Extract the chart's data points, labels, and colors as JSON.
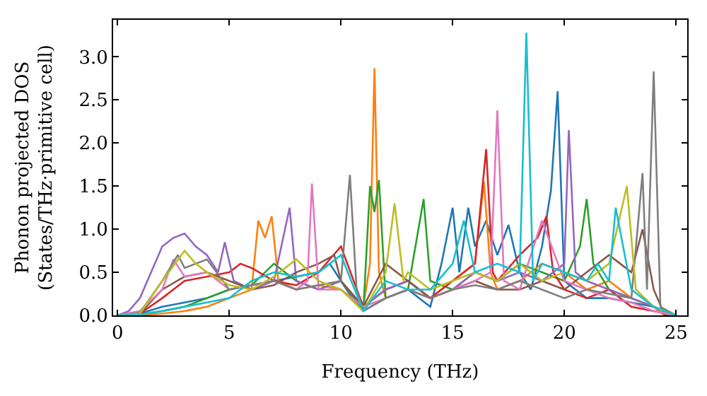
{
  "chart_data": {
    "type": "line",
    "xlabel": "Frequency (THz)",
    "ylabel": "Phonon projected DOS\n(States/THz·primitive cell)",
    "xlim": [
      -0.2,
      25.5
    ],
    "ylim": [
      0,
      3.43
    ],
    "xticks": [
      0,
      5,
      10,
      15,
      20,
      25
    ],
    "yticks": [
      {
        "value": 0,
        "label": "0.0"
      },
      {
        "value": 0.5,
        "label": "0.5"
      },
      {
        "value": 1,
        "label": "1.0"
      },
      {
        "value": 1.5,
        "label": "1.5"
      },
      {
        "value": 2,
        "label": "2.0"
      },
      {
        "value": 2.5,
        "label": "2.5"
      },
      {
        "value": 3,
        "label": "3.0"
      }
    ],
    "grid": false,
    "marker": "none",
    "line_style": "solid",
    "series": [
      {
        "color": "#1f77b4",
        "x": [
          0,
          1,
          2,
          3,
          4,
          5,
          6,
          7,
          8,
          9,
          9.5,
          10,
          10.5,
          11,
          12,
          13,
          14,
          14.5,
          15,
          15.3,
          15.7,
          16,
          16.5,
          17,
          17.5,
          18,
          18.5,
          19,
          19.4,
          19.7,
          20,
          20.5,
          21,
          22,
          23,
          24,
          24.5,
          25
        ],
        "values": [
          0,
          0.02,
          0.1,
          0.15,
          0.2,
          0.3,
          0.35,
          0.4,
          0.45,
          0.5,
          0.6,
          0.4,
          0.2,
          0.05,
          0.2,
          0.3,
          0.1,
          0.6,
          1.25,
          0.5,
          1.25,
          0.8,
          1.1,
          0.7,
          1.05,
          0.5,
          0.3,
          0.8,
          1.45,
          2.6,
          0.4,
          0.3,
          0.2,
          0.2,
          0.15,
          0.1,
          0,
          0
        ]
      },
      {
        "color": "#ff7f0e",
        "x": [
          0,
          1,
          2,
          3,
          4,
          5,
          6,
          6.3,
          6.6,
          6.9,
          7.2,
          8,
          9,
          10,
          11,
          11.3,
          11.5,
          11.7,
          12,
          13,
          14,
          15,
          16,
          16.4,
          16.7,
          17,
          18,
          19,
          20,
          21,
          22,
          23,
          24,
          24.5,
          25
        ],
        "values": [
          0,
          0,
          0.02,
          0.05,
          0.1,
          0.2,
          0.3,
          1.1,
          0.9,
          1.15,
          0.4,
          0.3,
          0.35,
          0.3,
          0.1,
          0.6,
          2.87,
          0.5,
          0.2,
          0.3,
          0.2,
          0.4,
          0.6,
          1.55,
          0.5,
          0.3,
          0.4,
          0.6,
          0.5,
          0.3,
          0.4,
          0.2,
          0.1,
          0,
          0
        ]
      },
      {
        "color": "#2ca02c",
        "x": [
          0,
          1,
          2,
          3,
          4,
          5,
          6,
          7,
          8,
          9,
          10,
          11,
          11.3,
          11.5,
          11.7,
          12,
          13,
          13.7,
          14,
          15,
          16,
          17,
          18,
          19,
          20,
          20.7,
          21,
          21.3,
          22,
          23,
          24,
          25
        ],
        "values": [
          0,
          0.01,
          0.05,
          0.1,
          0.2,
          0.3,
          0.35,
          0.6,
          0.4,
          0.3,
          0.4,
          0.05,
          1.5,
          1.2,
          1.57,
          0.2,
          0.3,
          1.35,
          0.4,
          0.3,
          0.5,
          0.4,
          0.6,
          0.5,
          0.4,
          0.8,
          1.35,
          0.6,
          0.3,
          0.2,
          0.1,
          0
        ]
      },
      {
        "color": "#d62728",
        "x": [
          0,
          1,
          2,
          3,
          4,
          5,
          5.5,
          6,
          7,
          8,
          9,
          10,
          11,
          12,
          13,
          14,
          15,
          16,
          16.5,
          16.8,
          17,
          18,
          18.8,
          19.2,
          19.5,
          20,
          21,
          22,
          23,
          24,
          25
        ],
        "values": [
          0,
          0.02,
          0.2,
          0.4,
          0.45,
          0.5,
          0.6,
          0.55,
          0.4,
          0.35,
          0.5,
          0.8,
          0.1,
          0.3,
          0.4,
          0.2,
          0.4,
          0.6,
          1.93,
          0.5,
          0.4,
          0.7,
          0.9,
          1.15,
          0.5,
          0.3,
          0.2,
          0.3,
          0.1,
          0.05,
          0
        ]
      },
      {
        "color": "#9467bd",
        "x": [
          0,
          0.5,
          1,
          1.5,
          2,
          2.5,
          3,
          3.5,
          4,
          4.5,
          4.8,
          5.2,
          6,
          7,
          7.7,
          8,
          9,
          10,
          11,
          12,
          13,
          14,
          15,
          16,
          17,
          18,
          19,
          20,
          20.2,
          20.5,
          21,
          22,
          23,
          24,
          25
        ],
        "values": [
          0,
          0.05,
          0.2,
          0.5,
          0.8,
          0.9,
          0.95,
          0.8,
          0.7,
          0.5,
          0.85,
          0.4,
          0.3,
          0.4,
          1.25,
          0.4,
          0.3,
          0.4,
          0.1,
          0.3,
          0.4,
          0.2,
          0.3,
          0.5,
          0.4,
          0.5,
          0.4,
          0.6,
          2.15,
          0.5,
          0.4,
          0.3,
          0.2,
          0.1,
          0
        ]
      },
      {
        "color": "#8c564b",
        "x": [
          0,
          1,
          2,
          3,
          4,
          5,
          6,
          7,
          8,
          9,
          9.7,
          10,
          11,
          12,
          13,
          14,
          15,
          16,
          17,
          18,
          19,
          20,
          21,
          22,
          22.5,
          23,
          23.5,
          24,
          24.5,
          25
        ],
        "values": [
          0,
          0.02,
          0.3,
          0.45,
          0.5,
          0.4,
          0.3,
          0.35,
          0.5,
          0.6,
          0.7,
          0.4,
          0.1,
          0.6,
          0.4,
          0.2,
          0.3,
          0.4,
          0.3,
          0.3,
          0.4,
          0.3,
          0.5,
          0.7,
          0.6,
          0.5,
          1.0,
          0.3,
          0,
          0
        ]
      },
      {
        "color": "#e377c2",
        "x": [
          0,
          1,
          2,
          2.5,
          3,
          4,
          5,
          6,
          7,
          8,
          8.5,
          8.7,
          9,
          10,
          11,
          12,
          13,
          14,
          15,
          16,
          16.7,
          17,
          17.3,
          18,
          19,
          20,
          21,
          22,
          23,
          24,
          25
        ],
        "values": [
          0,
          0.05,
          0.3,
          0.65,
          0.45,
          0.5,
          0.3,
          0.35,
          0.4,
          0.3,
          0.4,
          1.53,
          0.3,
          0.3,
          0.1,
          0.2,
          0.3,
          0.2,
          0.3,
          0.4,
          0.5,
          2.38,
          0.4,
          0.3,
          1.1,
          0.4,
          0.3,
          0.2,
          0.15,
          0.05,
          0
        ]
      },
      {
        "color": "#7f7f7f",
        "x": [
          0,
          1,
          2,
          2.7,
          3,
          4,
          5,
          6,
          7,
          8,
          9,
          10,
          10.4,
          10.7,
          11,
          12,
          13,
          14,
          15,
          16,
          17,
          18,
          19,
          20,
          21,
          22,
          23,
          23.5,
          23.7,
          24,
          24.3,
          25
        ],
        "values": [
          0,
          0.03,
          0.4,
          0.7,
          0.55,
          0.65,
          0.3,
          0.35,
          0.4,
          0.3,
          0.35,
          0.4,
          1.63,
          0.3,
          0.05,
          0.2,
          0.3,
          0.2,
          0.3,
          0.35,
          0.3,
          0.4,
          0.3,
          0.2,
          0.3,
          0.25,
          0.2,
          1.65,
          0.3,
          2.83,
          0.1,
          0
        ]
      },
      {
        "color": "#bcbd22",
        "x": [
          0,
          1,
          2,
          3,
          3.5,
          4,
          5,
          6,
          7,
          8,
          9,
          10,
          11,
          12,
          12.4,
          12.8,
          13,
          14,
          15,
          16,
          17,
          18,
          19,
          20,
          21,
          22,
          22.8,
          23.2,
          24,
          25
        ],
        "values": [
          0,
          0.02,
          0.4,
          0.75,
          0.6,
          0.5,
          0.35,
          0.3,
          0.45,
          0.65,
          0.4,
          0.3,
          0.05,
          0.5,
          1.3,
          0.4,
          0.5,
          0.3,
          0.4,
          0.5,
          0.4,
          0.6,
          0.4,
          0.5,
          0.4,
          0.6,
          1.5,
          0.3,
          0.1,
          0
        ]
      },
      {
        "color": "#17becf",
        "x": [
          0,
          1,
          2,
          3,
          4,
          5,
          6,
          7,
          8,
          9,
          10,
          11,
          12,
          13,
          14,
          15,
          15.5,
          16,
          17,
          18,
          18.3,
          18.6,
          19,
          20,
          21,
          21.5,
          22,
          22.3,
          23,
          24,
          25
        ],
        "values": [
          0,
          0.01,
          0.05,
          0.1,
          0.15,
          0.2,
          0.4,
          0.5,
          0.45,
          0.5,
          0.7,
          0.05,
          0.4,
          0.3,
          0.3,
          0.6,
          1.1,
          0.5,
          0.6,
          0.5,
          3.28,
          0.4,
          0.6,
          0.5,
          0.4,
          0.6,
          0.4,
          1.25,
          0.3,
          0.1,
          0
        ]
      }
    ]
  }
}
